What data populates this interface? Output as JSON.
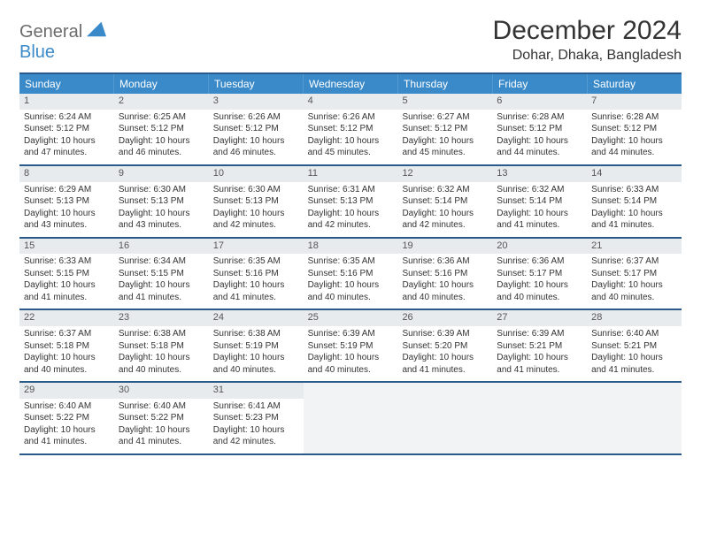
{
  "logo": {
    "top": "General",
    "bottom": "Blue"
  },
  "title": "December 2024",
  "location": "Dohar, Dhaka, Bangladesh",
  "header_bg": "#3a8ac9",
  "rule_color": "#2a5a8a",
  "daynum_bg": "#e8ebee",
  "dow": [
    "Sunday",
    "Monday",
    "Tuesday",
    "Wednesday",
    "Thursday",
    "Friday",
    "Saturday"
  ],
  "weeks": [
    [
      {
        "n": "1",
        "sr": "Sunrise: 6:24 AM",
        "ss": "Sunset: 5:12 PM",
        "d1": "Daylight: 10 hours",
        "d2": "and 47 minutes."
      },
      {
        "n": "2",
        "sr": "Sunrise: 6:25 AM",
        "ss": "Sunset: 5:12 PM",
        "d1": "Daylight: 10 hours",
        "d2": "and 46 minutes."
      },
      {
        "n": "3",
        "sr": "Sunrise: 6:26 AM",
        "ss": "Sunset: 5:12 PM",
        "d1": "Daylight: 10 hours",
        "d2": "and 46 minutes."
      },
      {
        "n": "4",
        "sr": "Sunrise: 6:26 AM",
        "ss": "Sunset: 5:12 PM",
        "d1": "Daylight: 10 hours",
        "d2": "and 45 minutes."
      },
      {
        "n": "5",
        "sr": "Sunrise: 6:27 AM",
        "ss": "Sunset: 5:12 PM",
        "d1": "Daylight: 10 hours",
        "d2": "and 45 minutes."
      },
      {
        "n": "6",
        "sr": "Sunrise: 6:28 AM",
        "ss": "Sunset: 5:12 PM",
        "d1": "Daylight: 10 hours",
        "d2": "and 44 minutes."
      },
      {
        "n": "7",
        "sr": "Sunrise: 6:28 AM",
        "ss": "Sunset: 5:12 PM",
        "d1": "Daylight: 10 hours",
        "d2": "and 44 minutes."
      }
    ],
    [
      {
        "n": "8",
        "sr": "Sunrise: 6:29 AM",
        "ss": "Sunset: 5:13 PM",
        "d1": "Daylight: 10 hours",
        "d2": "and 43 minutes."
      },
      {
        "n": "9",
        "sr": "Sunrise: 6:30 AM",
        "ss": "Sunset: 5:13 PM",
        "d1": "Daylight: 10 hours",
        "d2": "and 43 minutes."
      },
      {
        "n": "10",
        "sr": "Sunrise: 6:30 AM",
        "ss": "Sunset: 5:13 PM",
        "d1": "Daylight: 10 hours",
        "d2": "and 42 minutes."
      },
      {
        "n": "11",
        "sr": "Sunrise: 6:31 AM",
        "ss": "Sunset: 5:13 PM",
        "d1": "Daylight: 10 hours",
        "d2": "and 42 minutes."
      },
      {
        "n": "12",
        "sr": "Sunrise: 6:32 AM",
        "ss": "Sunset: 5:14 PM",
        "d1": "Daylight: 10 hours",
        "d2": "and 42 minutes."
      },
      {
        "n": "13",
        "sr": "Sunrise: 6:32 AM",
        "ss": "Sunset: 5:14 PM",
        "d1": "Daylight: 10 hours",
        "d2": "and 41 minutes."
      },
      {
        "n": "14",
        "sr": "Sunrise: 6:33 AM",
        "ss": "Sunset: 5:14 PM",
        "d1": "Daylight: 10 hours",
        "d2": "and 41 minutes."
      }
    ],
    [
      {
        "n": "15",
        "sr": "Sunrise: 6:33 AM",
        "ss": "Sunset: 5:15 PM",
        "d1": "Daylight: 10 hours",
        "d2": "and 41 minutes."
      },
      {
        "n": "16",
        "sr": "Sunrise: 6:34 AM",
        "ss": "Sunset: 5:15 PM",
        "d1": "Daylight: 10 hours",
        "d2": "and 41 minutes."
      },
      {
        "n": "17",
        "sr": "Sunrise: 6:35 AM",
        "ss": "Sunset: 5:16 PM",
        "d1": "Daylight: 10 hours",
        "d2": "and 41 minutes."
      },
      {
        "n": "18",
        "sr": "Sunrise: 6:35 AM",
        "ss": "Sunset: 5:16 PM",
        "d1": "Daylight: 10 hours",
        "d2": "and 40 minutes."
      },
      {
        "n": "19",
        "sr": "Sunrise: 6:36 AM",
        "ss": "Sunset: 5:16 PM",
        "d1": "Daylight: 10 hours",
        "d2": "and 40 minutes."
      },
      {
        "n": "20",
        "sr": "Sunrise: 6:36 AM",
        "ss": "Sunset: 5:17 PM",
        "d1": "Daylight: 10 hours",
        "d2": "and 40 minutes."
      },
      {
        "n": "21",
        "sr": "Sunrise: 6:37 AM",
        "ss": "Sunset: 5:17 PM",
        "d1": "Daylight: 10 hours",
        "d2": "and 40 minutes."
      }
    ],
    [
      {
        "n": "22",
        "sr": "Sunrise: 6:37 AM",
        "ss": "Sunset: 5:18 PM",
        "d1": "Daylight: 10 hours",
        "d2": "and 40 minutes."
      },
      {
        "n": "23",
        "sr": "Sunrise: 6:38 AM",
        "ss": "Sunset: 5:18 PM",
        "d1": "Daylight: 10 hours",
        "d2": "and 40 minutes."
      },
      {
        "n": "24",
        "sr": "Sunrise: 6:38 AM",
        "ss": "Sunset: 5:19 PM",
        "d1": "Daylight: 10 hours",
        "d2": "and 40 minutes."
      },
      {
        "n": "25",
        "sr": "Sunrise: 6:39 AM",
        "ss": "Sunset: 5:19 PM",
        "d1": "Daylight: 10 hours",
        "d2": "and 40 minutes."
      },
      {
        "n": "26",
        "sr": "Sunrise: 6:39 AM",
        "ss": "Sunset: 5:20 PM",
        "d1": "Daylight: 10 hours",
        "d2": "and 41 minutes."
      },
      {
        "n": "27",
        "sr": "Sunrise: 6:39 AM",
        "ss": "Sunset: 5:21 PM",
        "d1": "Daylight: 10 hours",
        "d2": "and 41 minutes."
      },
      {
        "n": "28",
        "sr": "Sunrise: 6:40 AM",
        "ss": "Sunset: 5:21 PM",
        "d1": "Daylight: 10 hours",
        "d2": "and 41 minutes."
      }
    ],
    [
      {
        "n": "29",
        "sr": "Sunrise: 6:40 AM",
        "ss": "Sunset: 5:22 PM",
        "d1": "Daylight: 10 hours",
        "d2": "and 41 minutes."
      },
      {
        "n": "30",
        "sr": "Sunrise: 6:40 AM",
        "ss": "Sunset: 5:22 PM",
        "d1": "Daylight: 10 hours",
        "d2": "and 41 minutes."
      },
      {
        "n": "31",
        "sr": "Sunrise: 6:41 AM",
        "ss": "Sunset: 5:23 PM",
        "d1": "Daylight: 10 hours",
        "d2": "and 42 minutes."
      },
      null,
      null,
      null,
      null
    ]
  ]
}
